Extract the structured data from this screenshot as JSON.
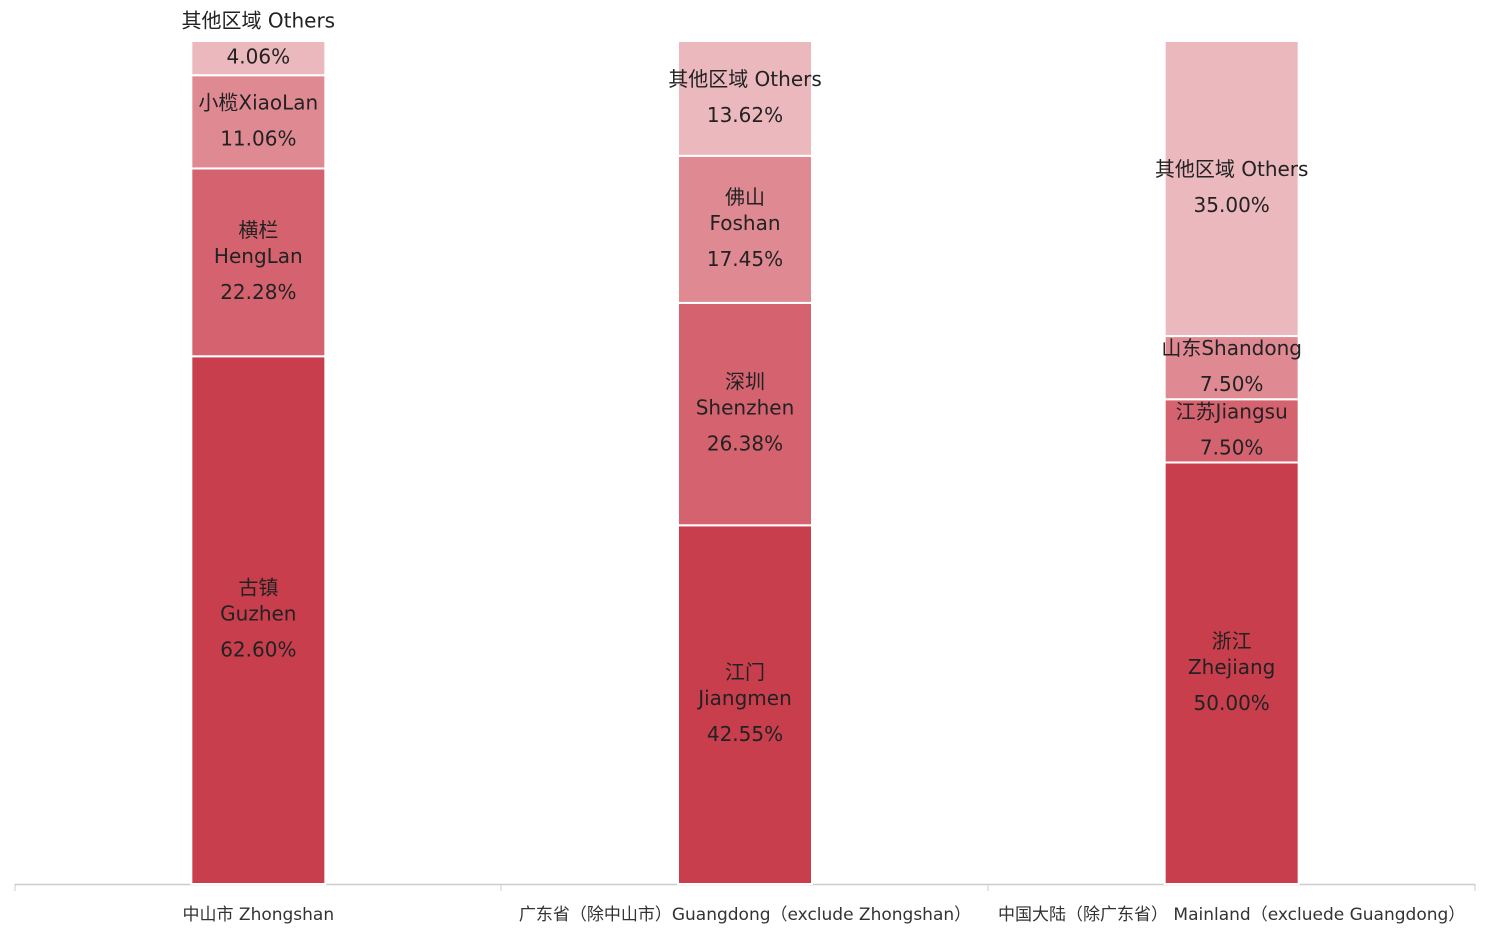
{
  "chart_data": {
    "type": "stacked_bar",
    "ylim": [
      0,
      100
    ],
    "categories": [
      "中山市 Zhongshan",
      "广东省（除中山市）Guangdong（exclude Zhongshan）",
      "中国大陆（除广东省） Mainland（excluede Guangdong）"
    ],
    "series": [
      {
        "segments": [
          {
            "label": [
              "古镇",
              "Guzhen"
            ],
            "value": 62.6,
            "value_label": "62.60%",
            "color": "#c83e4d"
          },
          {
            "label": [
              "横栏",
              "HengLan"
            ],
            "value": 22.28,
            "value_label": "22.28%",
            "color": "#d4636f"
          },
          {
            "label": [
              "小榄XiaoLan"
            ],
            "value": 11.06,
            "value_label": "11.06%",
            "color": "#df8a93"
          },
          {
            "label": [
              "其他区域 Others"
            ],
            "value": 4.06,
            "value_label": "4.06%",
            "color": "#ebb8be"
          }
        ]
      },
      {
        "segments": [
          {
            "label": [
              "江门",
              "Jiangmen"
            ],
            "value": 42.55,
            "value_label": "42.55%",
            "color": "#c83e4d"
          },
          {
            "label": [
              "深圳",
              "Shenzhen"
            ],
            "value": 26.38,
            "value_label": "26.38%",
            "color": "#d4636f"
          },
          {
            "label": [
              "佛山",
              "Foshan"
            ],
            "value": 17.45,
            "value_label": "17.45%",
            "color": "#df8a93"
          },
          {
            "label": [
              "其他区域 Others"
            ],
            "value": 13.62,
            "value_label": "13.62%",
            "color": "#ebb8be"
          }
        ]
      },
      {
        "segments": [
          {
            "label": [
              "浙江",
              "Zhejiang"
            ],
            "value": 50,
            "value_label": "50.00%",
            "color": "#c83e4d"
          },
          {
            "label": [
              "江苏Jiangsu"
            ],
            "value": 7.5,
            "value_label": "7.50%",
            "color": "#d4636f"
          },
          {
            "label": [
              "山东Shandong"
            ],
            "value": 7.5,
            "value_label": "7.50%",
            "color": "#df8a93"
          },
          {
            "label": [
              "其他区域 Others"
            ],
            "value": 35,
            "value_label": "35.00%",
            "color": "#ebb8be"
          }
        ]
      }
    ]
  }
}
